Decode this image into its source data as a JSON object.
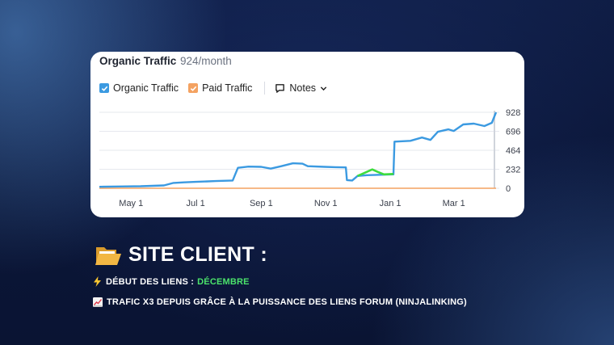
{
  "card": {
    "title": "Organic Traffic",
    "subtitle": "924/month",
    "legend": {
      "organic_label": "Organic Traffic",
      "paid_label": "Paid Traffic",
      "notes_label": "Notes"
    }
  },
  "colors": {
    "organic": "#3b9ae1",
    "paid": "#f4a261",
    "highlight": "#3ddc3d",
    "accent": "#4be36b"
  },
  "chart_data": {
    "type": "line",
    "title": "Organic Traffic",
    "y_ticks": [
      "928",
      "696",
      "464",
      "232",
      "0"
    ],
    "x_ticks": [
      "May 1",
      "Jul 1",
      "Sep 1",
      "Nov 1",
      "Jan 1",
      "Mar 1"
    ],
    "ylim": [
      0,
      928
    ],
    "legend": "top-left",
    "grid": true,
    "series": [
      {
        "name": "Organic Traffic",
        "points": [
          [
            "2023-04-01",
            18
          ],
          [
            "2023-04-20",
            22
          ],
          [
            "2023-05-10",
            25
          ],
          [
            "2023-06-01",
            35
          ],
          [
            "2023-06-10",
            65
          ],
          [
            "2023-06-20",
            72
          ],
          [
            "2023-07-01",
            78
          ],
          [
            "2023-07-20",
            88
          ],
          [
            "2023-08-05",
            95
          ],
          [
            "2023-08-10",
            250
          ],
          [
            "2023-08-20",
            265
          ],
          [
            "2023-09-01",
            262
          ],
          [
            "2023-09-10",
            240
          ],
          [
            "2023-09-20",
            270
          ],
          [
            "2023-10-01",
            305
          ],
          [
            "2023-10-10",
            300
          ],
          [
            "2023-10-15",
            270
          ],
          [
            "2023-10-31",
            262
          ],
          [
            "2023-11-10",
            258
          ],
          [
            "2023-11-20",
            255
          ],
          [
            "2023-11-21",
            100
          ],
          [
            "2023-11-26",
            95
          ],
          [
            "2023-12-01",
            150
          ],
          [
            "2023-12-10",
            160
          ],
          [
            "2024-01-04",
            170
          ],
          [
            "2024-01-05",
            570
          ],
          [
            "2024-01-20",
            580
          ],
          [
            "2024-01-31",
            620
          ],
          [
            "2024-02-08",
            590
          ],
          [
            "2024-02-15",
            690
          ],
          [
            "2024-02-25",
            720
          ],
          [
            "2024-03-01",
            700
          ],
          [
            "2024-03-10",
            780
          ],
          [
            "2024-03-20",
            790
          ],
          [
            "2024-03-30",
            760
          ],
          [
            "2024-04-06",
            800
          ],
          [
            "2024-04-10",
            928
          ]
        ]
      },
      {
        "name": "Paid Traffic",
        "points": [
          [
            "2023-04-01",
            0
          ],
          [
            "2024-04-10",
            0
          ]
        ]
      }
    ],
    "highlight": {
      "from": "2023-12-01",
      "to": "2024-01-04",
      "points": [
        [
          "2023-12-01",
          150
        ],
        [
          "2023-12-08",
          190
        ],
        [
          "2023-12-15",
          230
        ],
        [
          "2023-12-20",
          200
        ],
        [
          "2023-12-26",
          170
        ],
        [
          "2024-01-04",
          175
        ]
      ]
    }
  },
  "text": {
    "headline": "SITE CLIENT :",
    "line1_prefix": "DÉBUT DES LIENS :",
    "line1_value": "DÉCEMBRE",
    "line2": "TRAFIC X3 DEPUIS GRÂCE À LA PUISSANCE DES LIENS FORUM (NINJALINKING)"
  },
  "icons": {
    "headline": "open-folder-icon",
    "line1": "lightning-icon",
    "line2": "chart-increasing-icon",
    "notes": "comment-icon"
  }
}
